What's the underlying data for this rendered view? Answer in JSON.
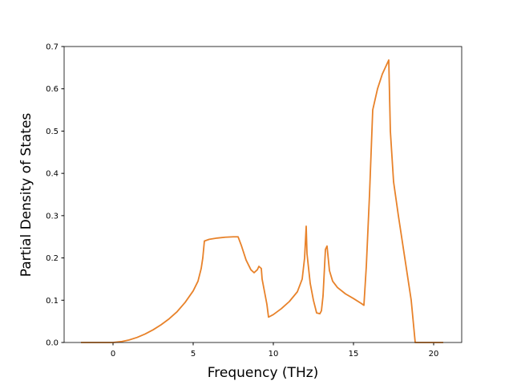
{
  "chart_data": {
    "type": "line",
    "xlabel": "Frequency (THz)",
    "ylabel": "Partial Density of States",
    "x": [
      -2,
      0,
      0.5,
      1,
      1.5,
      2,
      2.5,
      3,
      3.5,
      4,
      4.5,
      5,
      5.3,
      5.5,
      5.6,
      5.7,
      6,
      6.5,
      7,
      7.5,
      7.8,
      8,
      8.3,
      8.6,
      8.8,
      9,
      9.1,
      9.25,
      9.3,
      9.5,
      9.6,
      9.7,
      10,
      10.5,
      11,
      11.5,
      11.8,
      11.95,
      12.05,
      12.1,
      12.3,
      12.5,
      12.7,
      12.9,
      13,
      13.1,
      13.25,
      13.35,
      13.5,
      13.7,
      14,
      14.5,
      15,
      15.5,
      15.65,
      15.8,
      16,
      16.2,
      16.5,
      16.8,
      17.2,
      17.3,
      17.5,
      17.8,
      18.2,
      18.6,
      18.85,
      20.6
    ],
    "series": [
      {
        "color": "#e8822a",
        "values": [
          0,
          0,
          0.002,
          0.006,
          0.012,
          0.02,
          0.03,
          0.042,
          0.056,
          0.073,
          0.095,
          0.122,
          0.145,
          0.175,
          0.2,
          0.24,
          0.244,
          0.247,
          0.249,
          0.25,
          0.25,
          0.23,
          0.195,
          0.172,
          0.165,
          0.172,
          0.18,
          0.175,
          0.15,
          0.11,
          0.09,
          0.06,
          0.066,
          0.08,
          0.097,
          0.12,
          0.15,
          0.2,
          0.275,
          0.21,
          0.14,
          0.1,
          0.07,
          0.068,
          0.075,
          0.11,
          0.22,
          0.228,
          0.17,
          0.145,
          0.13,
          0.115,
          0.104,
          0.092,
          0.088,
          0.18,
          0.35,
          0.55,
          0.6,
          0.635,
          0.668,
          0.5,
          0.38,
          0.3,
          0.2,
          0.1,
          0,
          0
        ]
      }
    ],
    "xlim": [
      -3.05,
      21.75
    ],
    "ylim": [
      0,
      0.7
    ],
    "xticks": [
      0,
      5,
      10,
      15,
      20
    ],
    "yticks": [
      {
        "value": 0,
        "label": "0.0"
      },
      0.1,
      0.2,
      0.3,
      0.4,
      0.5,
      0.6,
      0.7
    ]
  }
}
